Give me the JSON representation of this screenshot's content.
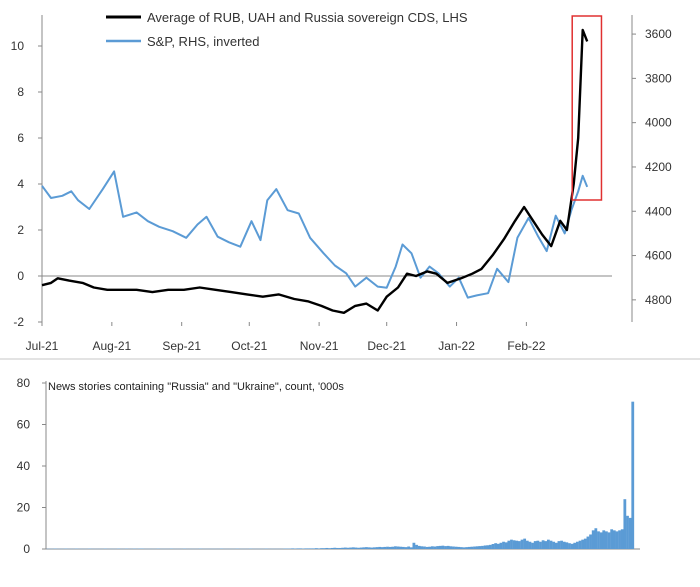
{
  "chart_data": [
    {
      "type": "line",
      "legend_placement": "top",
      "grid": false,
      "x_ticks": [
        "Jul-21",
        "Aug-21",
        "Sep-21",
        "Oct-21",
        "Nov-21",
        "Dec-21",
        "Jan-22",
        "Feb-22"
      ],
      "y_left_ticks": [
        "-2",
        "0",
        "2",
        "4",
        "6",
        "8",
        "10"
      ],
      "y_left_lim": [
        -2,
        11
      ],
      "y_right_ticks": [
        "3600",
        "3800",
        "4000",
        "4200",
        "4400",
        "4600",
        "4800"
      ],
      "y_right_lim": [
        3550,
        4900
      ],
      "y_right_inverted": true,
      "highlight_box": {
        "x": [
          "2022-02-24",
          "2022-03-01"
        ],
        "color": "#e03030"
      },
      "series": [
        {
          "name": "Average of RUB, UAH and Russia sovereign CDS, LHS",
          "axis": "left",
          "color": "#000000",
          "points": [
            [
              "2021-07-01",
              -0.4
            ],
            [
              "2021-07-05",
              -0.3
            ],
            [
              "2021-07-08",
              -0.1
            ],
            [
              "2021-07-13",
              -0.2
            ],
            [
              "2021-07-19",
              -0.3
            ],
            [
              "2021-07-24",
              -0.5
            ],
            [
              "2021-07-30",
              -0.6
            ],
            [
              "2021-08-05",
              -0.6
            ],
            [
              "2021-08-12",
              -0.6
            ],
            [
              "2021-08-19",
              -0.7
            ],
            [
              "2021-08-26",
              -0.6
            ],
            [
              "2021-09-02",
              -0.6
            ],
            [
              "2021-09-09",
              -0.5
            ],
            [
              "2021-09-16",
              -0.6
            ],
            [
              "2021-09-23",
              -0.7
            ],
            [
              "2021-09-30",
              -0.8
            ],
            [
              "2021-10-07",
              -0.9
            ],
            [
              "2021-10-14",
              -0.8
            ],
            [
              "2021-10-21",
              -1.0
            ],
            [
              "2021-10-27",
              -1.1
            ],
            [
              "2021-11-02",
              -1.3
            ],
            [
              "2021-11-07",
              -1.5
            ],
            [
              "2021-11-12",
              -1.6
            ],
            [
              "2021-11-17",
              -1.3
            ],
            [
              "2021-11-22",
              -1.2
            ],
            [
              "2021-11-27",
              -1.5
            ],
            [
              "2021-12-01",
              -0.9
            ],
            [
              "2021-12-06",
              -0.5
            ],
            [
              "2021-12-10",
              0.1
            ],
            [
              "2021-12-14",
              0.0
            ],
            [
              "2021-12-19",
              0.2
            ],
            [
              "2021-12-23",
              0.1
            ],
            [
              "2021-12-28",
              -0.3
            ],
            [
              "2022-01-03",
              -0.1
            ],
            [
              "2022-01-08",
              0.1
            ],
            [
              "2022-01-12",
              0.3
            ],
            [
              "2022-01-17",
              0.9
            ],
            [
              "2022-01-22",
              1.6
            ],
            [
              "2022-01-27",
              2.4
            ],
            [
              "2022-01-31",
              3.0
            ],
            [
              "2022-02-04",
              2.4
            ],
            [
              "2022-02-08",
              1.8
            ],
            [
              "2022-02-12",
              1.3
            ],
            [
              "2022-02-16",
              2.4
            ],
            [
              "2022-02-19",
              2.0
            ],
            [
              "2022-02-22",
              4.0
            ],
            [
              "2022-02-24",
              6.0
            ],
            [
              "2022-02-26",
              10.7
            ],
            [
              "2022-02-28",
              10.2
            ]
          ]
        },
        {
          "name": "S&P, RHS, inverted",
          "axis": "right",
          "color": "#5b9bd5",
          "points": [
            [
              "2021-07-01",
              4285
            ],
            [
              "2021-07-05",
              4340
            ],
            [
              "2021-07-10",
              4330
            ],
            [
              "2021-07-14",
              4310
            ],
            [
              "2021-07-17",
              4350
            ],
            [
              "2021-07-22",
              4390
            ],
            [
              "2021-07-28",
              4300
            ],
            [
              "2021-08-02",
              4220
            ],
            [
              "2021-08-06",
              4425
            ],
            [
              "2021-08-12",
              4405
            ],
            [
              "2021-08-17",
              4445
            ],
            [
              "2021-08-22",
              4470
            ],
            [
              "2021-08-28",
              4490
            ],
            [
              "2021-09-03",
              4520
            ],
            [
              "2021-09-08",
              4460
            ],
            [
              "2021-09-12",
              4425
            ],
            [
              "2021-09-17",
              4515
            ],
            [
              "2021-09-22",
              4540
            ],
            [
              "2021-09-27",
              4560
            ],
            [
              "2021-10-02",
              4445
            ],
            [
              "2021-10-06",
              4530
            ],
            [
              "2021-10-09",
              4350
            ],
            [
              "2021-10-13",
              4300
            ],
            [
              "2021-10-18",
              4395
            ],
            [
              "2021-10-23",
              4410
            ],
            [
              "2021-10-28",
              4520
            ],
            [
              "2021-11-03",
              4590
            ],
            [
              "2021-11-08",
              4645
            ],
            [
              "2021-11-13",
              4680
            ],
            [
              "2021-11-17",
              4740
            ],
            [
              "2021-11-22",
              4700
            ],
            [
              "2021-11-27",
              4740
            ],
            [
              "2021-12-01",
              4745
            ],
            [
              "2021-12-05",
              4650
            ],
            [
              "2021-12-08",
              4550
            ],
            [
              "2021-12-12",
              4590
            ],
            [
              "2021-12-16",
              4700
            ],
            [
              "2021-12-20",
              4650
            ],
            [
              "2021-12-24",
              4680
            ],
            [
              "2021-12-29",
              4740
            ],
            [
              "2022-01-02",
              4700
            ],
            [
              "2022-01-06",
              4790
            ],
            [
              "2022-01-10",
              4780
            ],
            [
              "2022-01-15",
              4770
            ],
            [
              "2022-01-19",
              4660
            ],
            [
              "2022-01-24",
              4720
            ],
            [
              "2022-01-28",
              4520
            ],
            [
              "2022-02-02",
              4430
            ],
            [
              "2022-02-06",
              4510
            ],
            [
              "2022-02-10",
              4580
            ],
            [
              "2022-02-14",
              4420
            ],
            [
              "2022-02-18",
              4500
            ],
            [
              "2022-02-21",
              4395
            ],
            [
              "2022-02-24",
              4310
            ],
            [
              "2022-02-26",
              4240
            ],
            [
              "2022-02-28",
              4290
            ]
          ]
        }
      ]
    },
    {
      "type": "bar",
      "title": "News stories containing \"Russia\" and \"Ukraine\", count, '000s",
      "y_ticks": [
        "0",
        "20",
        "40",
        "60",
        "80"
      ],
      "ylim": [
        0,
        80
      ],
      "grid": false,
      "color": "#5b9bd5",
      "start_date": "2021-07-01",
      "values": [
        0.1,
        0.1,
        0.1,
        0.2,
        0.1,
        0.1,
        0.1,
        0.2,
        0.1,
        0.1,
        0.1,
        0.2,
        0.1,
        0.1,
        0.1,
        0.1,
        0.2,
        0.1,
        0.1,
        0.1,
        0.1,
        0.1,
        0.2,
        0.1,
        0.1,
        0.1,
        0.1,
        0.2,
        0.1,
        0.1,
        0.2,
        0.1,
        0.1,
        0.2,
        0.1,
        0.2,
        0.2,
        0.1,
        0.1,
        0.1,
        0.1,
        0.1,
        0.2,
        0.1,
        0.1,
        0.1,
        0.1,
        0.2,
        0.1,
        0.1,
        0.1,
        0.1,
        0.2,
        0.1,
        0.1,
        0.1,
        0.1,
        0.1,
        0.2,
        0.1,
        0.1,
        0.1,
        0.1,
        0.1,
        0.1,
        0.1,
        0.2,
        0.1,
        0.1,
        0.1,
        0.1,
        0.1,
        0.2,
        0.1,
        0.1,
        0.1,
        0.1,
        0.2,
        0.1,
        0.1,
        0.1,
        0.1,
        0.1,
        0.2,
        0.1,
        0.1,
        0.1,
        0.1,
        0.1,
        0.1,
        0.2,
        0.2,
        0.2,
        0.3,
        0.2,
        0.3,
        0.3,
        0.2,
        0.3,
        0.3,
        0.3,
        0.3,
        0.4,
        0.3,
        0.4,
        0.4,
        0.5,
        0.4,
        0.5,
        0.6,
        0.5,
        0.5,
        0.6,
        0.7,
        0.6,
        0.7,
        0.8,
        0.7,
        0.6,
        0.7,
        0.8,
        0.9,
        0.8,
        0.7,
        0.8,
        0.9,
        1.0,
        0.9,
        1.0,
        1.1,
        1.0,
        1.1,
        1.3,
        1.2,
        1.1,
        1.0,
        0.9,
        1.2,
        0.8,
        3.0,
        2.0,
        1.5,
        1.3,
        1.2,
        1.0,
        1.1,
        1.3,
        1.2,
        1.4,
        1.5,
        1.6,
        1.4,
        1.5,
        1.3,
        1.2,
        1.1,
        1.0,
        0.9,
        0.8,
        0.9,
        1.0,
        1.1,
        1.2,
        1.3,
        1.4,
        1.5,
        1.7,
        1.8,
        2.0,
        2.4,
        2.8,
        2.5,
        3.0,
        3.5,
        3.2,
        4.0,
        4.5,
        4.2,
        4.0,
        3.8,
        4.5,
        5.0,
        4.0,
        3.5,
        3.0,
        3.8,
        4.0,
        3.5,
        4.2,
        3.8,
        4.5,
        4.0,
        3.5,
        3.0,
        3.8,
        4.0,
        3.5,
        3.2,
        2.8,
        2.5,
        3.0,
        3.5,
        4.0,
        4.5,
        5.0,
        6.0,
        7.0,
        9.0,
        10.0,
        8.5,
        8.0,
        9.0,
        8.5,
        8.0,
        9.5,
        9.0,
        8.5,
        9.0,
        9.5,
        24.0,
        16.0,
        15.0,
        71.0
      ]
    }
  ]
}
